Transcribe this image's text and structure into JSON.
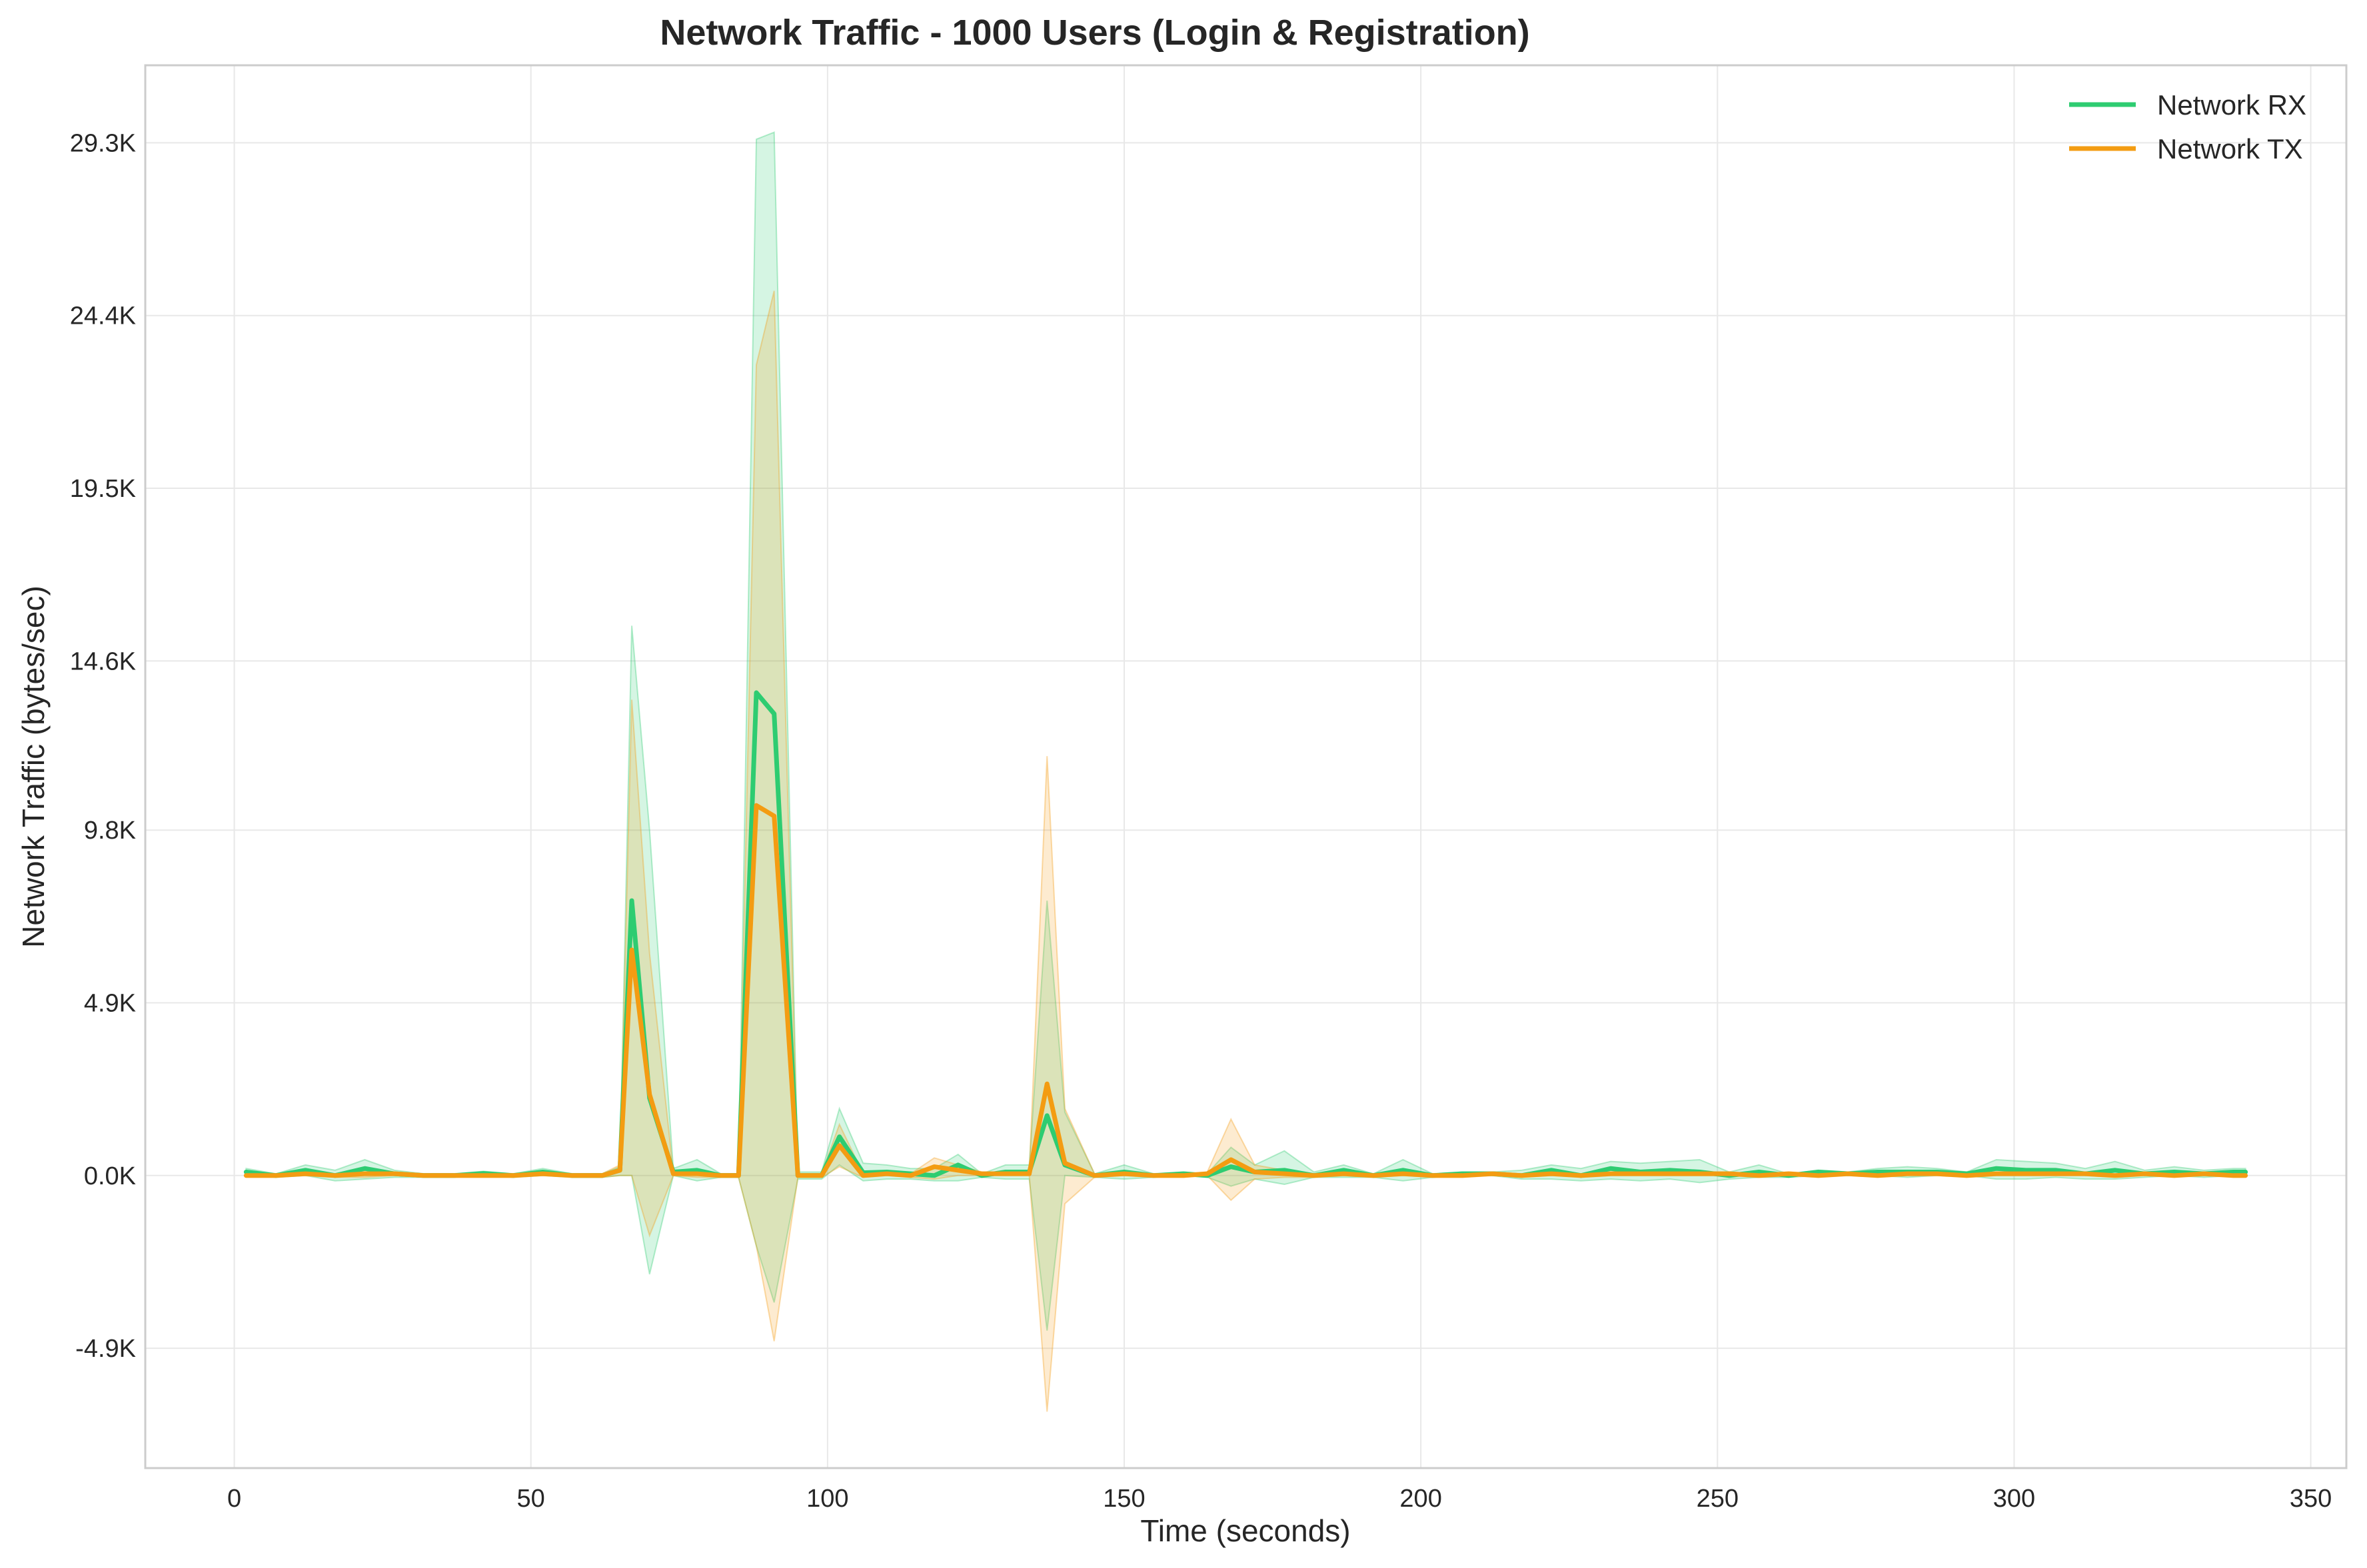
{
  "chart_data": {
    "type": "line",
    "title": "Network Traffic - 1000 Users (Login & Registration)",
    "xlabel": "Time (seconds)",
    "ylabel": "Network Traffic (bytes/sec)",
    "xlim": [
      -15,
      356
    ],
    "ylim": [
      -8300,
      31500
    ],
    "x_ticks": [
      0,
      50,
      100,
      150,
      200,
      250,
      300,
      350
    ],
    "x_tick_labels": [
      "0",
      "50",
      "100",
      "150",
      "200",
      "250",
      "300",
      "350"
    ],
    "y_ticks": [
      -4900,
      0,
      4900,
      9800,
      14600,
      19500,
      24400,
      29300
    ],
    "y_tick_labels": [
      "-4.9K",
      "0.0K",
      "4.9K",
      "9.8K",
      "14.6K",
      "19.5K",
      "24.4K",
      "29.3K"
    ],
    "grid": true,
    "legend_position": "top-right",
    "series": [
      {
        "name": "Network RX",
        "color": "#2ecc71",
        "band_opacity": 0.2,
        "points": [
          [
            2,
            100,
            0,
            200
          ],
          [
            7,
            0,
            -50,
            50
          ],
          [
            12,
            150,
            0,
            300
          ],
          [
            17,
            0,
            -150,
            150
          ],
          [
            22,
            200,
            -100,
            450
          ],
          [
            27,
            50,
            -50,
            150
          ],
          [
            32,
            0,
            -50,
            50
          ],
          [
            37,
            0,
            -50,
            50
          ],
          [
            42,
            60,
            0,
            120
          ],
          [
            47,
            0,
            -50,
            50
          ],
          [
            52,
            100,
            0,
            200
          ],
          [
            57,
            0,
            -50,
            50
          ],
          [
            62,
            0,
            -50,
            50
          ],
          [
            65,
            150,
            0,
            250
          ],
          [
            67,
            7800,
            0,
            15600
          ],
          [
            70,
            2200,
            -2800,
            9800
          ],
          [
            74,
            100,
            0,
            200
          ],
          [
            78,
            150,
            -150,
            450
          ],
          [
            82,
            0,
            -50,
            50
          ],
          [
            85,
            0,
            -50,
            50
          ],
          [
            88,
            13700,
            -2000,
            29400
          ],
          [
            91,
            13100,
            -3600,
            29600
          ],
          [
            95,
            0,
            -100,
            100
          ],
          [
            99,
            0,
            -100,
            100
          ],
          [
            102,
            1100,
            300,
            1900
          ],
          [
            106,
            80,
            -150,
            350
          ],
          [
            110,
            100,
            -100,
            300
          ],
          [
            114,
            50,
            -100,
            200
          ],
          [
            118,
            0,
            -150,
            200
          ],
          [
            122,
            300,
            -150,
            600
          ],
          [
            126,
            0,
            -50,
            50
          ],
          [
            130,
            100,
            -100,
            300
          ],
          [
            134,
            100,
            -100,
            300
          ],
          [
            137,
            1700,
            -4400,
            7800
          ],
          [
            140,
            300,
            0,
            1800
          ],
          [
            145,
            0,
            -50,
            50
          ],
          [
            150,
            100,
            -100,
            300
          ],
          [
            155,
            0,
            -50,
            50
          ],
          [
            160,
            50,
            0,
            100
          ],
          [
            164,
            0,
            -50,
            50
          ],
          [
            168,
            250,
            -300,
            800
          ],
          [
            172,
            100,
            -100,
            300
          ],
          [
            177,
            150,
            -250,
            700
          ],
          [
            182,
            0,
            -50,
            100
          ],
          [
            187,
            150,
            -50,
            300
          ],
          [
            192,
            0,
            -50,
            50
          ],
          [
            197,
            150,
            -150,
            450
          ],
          [
            202,
            0,
            -50,
            50
          ],
          [
            207,
            50,
            0,
            100
          ],
          [
            212,
            50,
            0,
            100
          ],
          [
            217,
            0,
            -100,
            150
          ],
          [
            222,
            150,
            -100,
            300
          ],
          [
            227,
            0,
            -150,
            200
          ],
          [
            232,
            200,
            -100,
            400
          ],
          [
            237,
            100,
            -150,
            350
          ],
          [
            242,
            150,
            -100,
            400
          ],
          [
            247,
            100,
            -200,
            450
          ],
          [
            252,
            0,
            -100,
            100
          ],
          [
            257,
            100,
            -50,
            300
          ],
          [
            262,
            0,
            -50,
            50
          ],
          [
            267,
            100,
            0,
            150
          ],
          [
            272,
            50,
            0,
            100
          ],
          [
            277,
            100,
            0,
            200
          ],
          [
            282,
            100,
            -50,
            250
          ],
          [
            287,
            100,
            0,
            200
          ],
          [
            292,
            50,
            0,
            100
          ],
          [
            297,
            200,
            -100,
            450
          ],
          [
            302,
            150,
            -100,
            400
          ],
          [
            307,
            150,
            -50,
            350
          ],
          [
            312,
            50,
            -100,
            200
          ],
          [
            317,
            150,
            -100,
            400
          ],
          [
            322,
            50,
            -50,
            150
          ],
          [
            327,
            100,
            0,
            250
          ],
          [
            332,
            50,
            -50,
            150
          ],
          [
            337,
            100,
            0,
            200
          ],
          [
            339,
            100,
            0,
            200
          ]
        ]
      },
      {
        "name": "Network TX",
        "color": "#f39c12",
        "band_opacity": 0.2,
        "points": [
          [
            2,
            0,
            -50,
            50
          ],
          [
            7,
            0,
            -50,
            50
          ],
          [
            12,
            50,
            0,
            100
          ],
          [
            17,
            0,
            -50,
            50
          ],
          [
            22,
            50,
            -50,
            150
          ],
          [
            27,
            50,
            0,
            100
          ],
          [
            32,
            0,
            -50,
            50
          ],
          [
            37,
            0,
            -50,
            50
          ],
          [
            42,
            0,
            -50,
            50
          ],
          [
            47,
            0,
            -50,
            50
          ],
          [
            52,
            50,
            0,
            100
          ],
          [
            57,
            0,
            -50,
            50
          ],
          [
            62,
            0,
            -50,
            50
          ],
          [
            65,
            150,
            0,
            300
          ],
          [
            67,
            6400,
            0,
            13500
          ],
          [
            70,
            2300,
            -1700,
            6300
          ],
          [
            74,
            50,
            0,
            100
          ],
          [
            78,
            50,
            -50,
            150
          ],
          [
            82,
            0,
            -50,
            50
          ],
          [
            85,
            0,
            -50,
            50
          ],
          [
            88,
            10500,
            -2000,
            23000
          ],
          [
            91,
            10200,
            -4700,
            25100
          ],
          [
            95,
            0,
            -50,
            50
          ],
          [
            99,
            0,
            -50,
            50
          ],
          [
            102,
            850,
            250,
            1450
          ],
          [
            106,
            0,
            -50,
            50
          ],
          [
            110,
            50,
            0,
            100
          ],
          [
            114,
            0,
            -50,
            50
          ],
          [
            118,
            250,
            -100,
            500
          ],
          [
            122,
            150,
            0,
            300
          ],
          [
            126,
            50,
            0,
            100
          ],
          [
            130,
            50,
            0,
            100
          ],
          [
            134,
            50,
            0,
            100
          ],
          [
            137,
            2600,
            -6700,
            11900
          ],
          [
            140,
            350,
            -800,
            1900
          ],
          [
            145,
            0,
            -50,
            50
          ],
          [
            150,
            50,
            0,
            100
          ],
          [
            155,
            0,
            -50,
            50
          ],
          [
            160,
            0,
            -50,
            50
          ],
          [
            164,
            50,
            0,
            100
          ],
          [
            168,
            450,
            -700,
            1600
          ],
          [
            172,
            100,
            -100,
            300
          ],
          [
            177,
            50,
            -50,
            150
          ],
          [
            182,
            0,
            -50,
            50
          ],
          [
            187,
            50,
            0,
            100
          ],
          [
            192,
            0,
            -50,
            50
          ],
          [
            197,
            50,
            0,
            100
          ],
          [
            202,
            0,
            -50,
            50
          ],
          [
            207,
            0,
            -50,
            50
          ],
          [
            212,
            50,
            0,
            100
          ],
          [
            217,
            0,
            -50,
            50
          ],
          [
            222,
            50,
            0,
            100
          ],
          [
            227,
            0,
            -50,
            50
          ],
          [
            232,
            50,
            0,
            100
          ],
          [
            237,
            50,
            0,
            100
          ],
          [
            242,
            50,
            0,
            100
          ],
          [
            247,
            50,
            0,
            100
          ],
          [
            252,
            50,
            0,
            100
          ],
          [
            257,
            0,
            -50,
            50
          ],
          [
            262,
            50,
            0,
            100
          ],
          [
            267,
            0,
            -50,
            50
          ],
          [
            272,
            50,
            0,
            100
          ],
          [
            277,
            0,
            -50,
            50
          ],
          [
            282,
            50,
            0,
            100
          ],
          [
            287,
            50,
            0,
            100
          ],
          [
            292,
            0,
            -50,
            50
          ],
          [
            297,
            50,
            0,
            100
          ],
          [
            302,
            50,
            0,
            100
          ],
          [
            307,
            50,
            0,
            100
          ],
          [
            312,
            50,
            0,
            100
          ],
          [
            317,
            0,
            -50,
            50
          ],
          [
            322,
            50,
            0,
            100
          ],
          [
            327,
            0,
            -50,
            50
          ],
          [
            332,
            50,
            0,
            100
          ],
          [
            337,
            0,
            -50,
            50
          ],
          [
            339,
            0,
            -50,
            50
          ]
        ]
      }
    ]
  }
}
